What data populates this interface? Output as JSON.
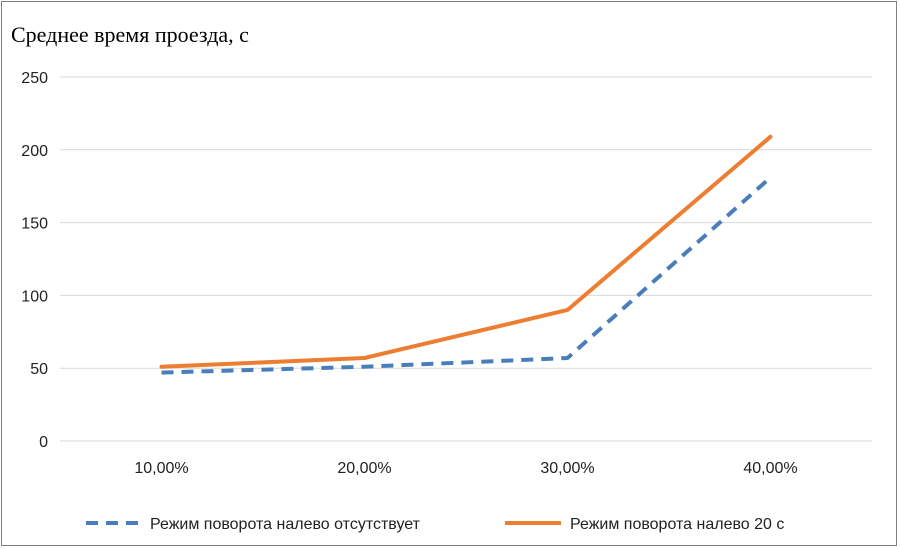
{
  "chart_data": {
    "type": "line",
    "title": "",
    "ylabel": "Среднее время проезда, с",
    "xlabel": "",
    "categories": [
      "10,00%",
      "20,00%",
      "30,00%",
      "40,00%"
    ],
    "ylim": [
      0,
      250
    ],
    "yticks": [
      "0",
      "50",
      "100",
      "150",
      "200",
      "250"
    ],
    "grid": true,
    "legend_position": "bottom",
    "series": [
      {
        "name": "Режим поворота налево отсутствует",
        "values": [
          47,
          51,
          57,
          181
        ],
        "color": "#4a7ebb",
        "style": "dashed"
      },
      {
        "name": "Режим поворота налево 20 с",
        "values": [
          51,
          57,
          90,
          209
        ],
        "color": "#ed7d31",
        "style": "solid"
      }
    ]
  }
}
